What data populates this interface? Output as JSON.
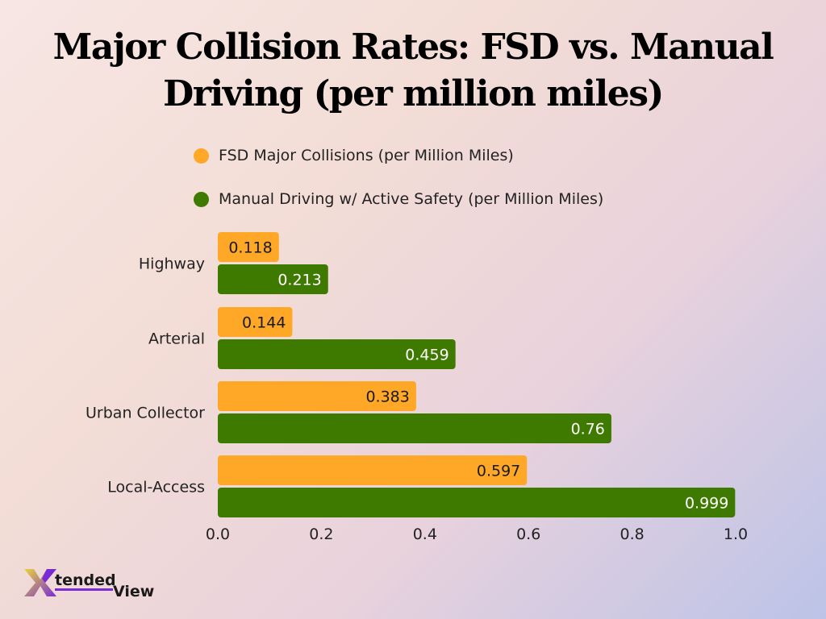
{
  "title": "Major Collision Rates: FSD vs. Manual Driving (per million miles)",
  "legend": [
    {
      "label": "FSD Major Collisions (per Million Miles)",
      "color": "#ffa726"
    },
    {
      "label": "Manual Driving w/ Active Safety (per Million Miles)",
      "color": "#3f7a00"
    }
  ],
  "chart_data": {
    "type": "bar",
    "orientation": "horizontal",
    "categories": [
      "Highway",
      "Arterial",
      "Urban Collector",
      "Local-Access"
    ],
    "series": [
      {
        "name": "FSD Major Collisions (per Million Miles)",
        "color": "#ffa726",
        "values": [
          0.118,
          0.144,
          0.383,
          0.597
        ]
      },
      {
        "name": "Manual Driving w/ Active Safety (per Million Miles)",
        "color": "#3f7a00",
        "values": [
          0.213,
          0.459,
          0.76,
          0.999
        ]
      }
    ],
    "xlim": [
      0,
      1.0
    ],
    "xticks": [
      "0.0",
      "0.2",
      "0.4",
      "0.6",
      "0.8",
      "1.0"
    ],
    "legend_position": "top",
    "grid": false
  },
  "logo": {
    "part1": "tended",
    "part2": "View",
    "mark": "X"
  }
}
